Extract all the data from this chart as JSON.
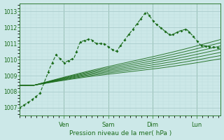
{
  "xlabel": "Pression niveau de la mer( hPa )",
  "bg_color": "#cce8e8",
  "grid_major_color": "#aacccc",
  "grid_minor_color": "#bbdddd",
  "line_color": "#1a6b1a",
  "ylim": [
    1006.5,
    1013.5
  ],
  "yticks": [
    1007,
    1008,
    1009,
    1010,
    1011,
    1012,
    1013
  ],
  "day_labels": [
    "Ven",
    "Sam",
    "Dim",
    "Lun"
  ],
  "day_positions": [
    0.22,
    0.44,
    0.66,
    0.88
  ],
  "xlim": [
    0,
    1
  ]
}
